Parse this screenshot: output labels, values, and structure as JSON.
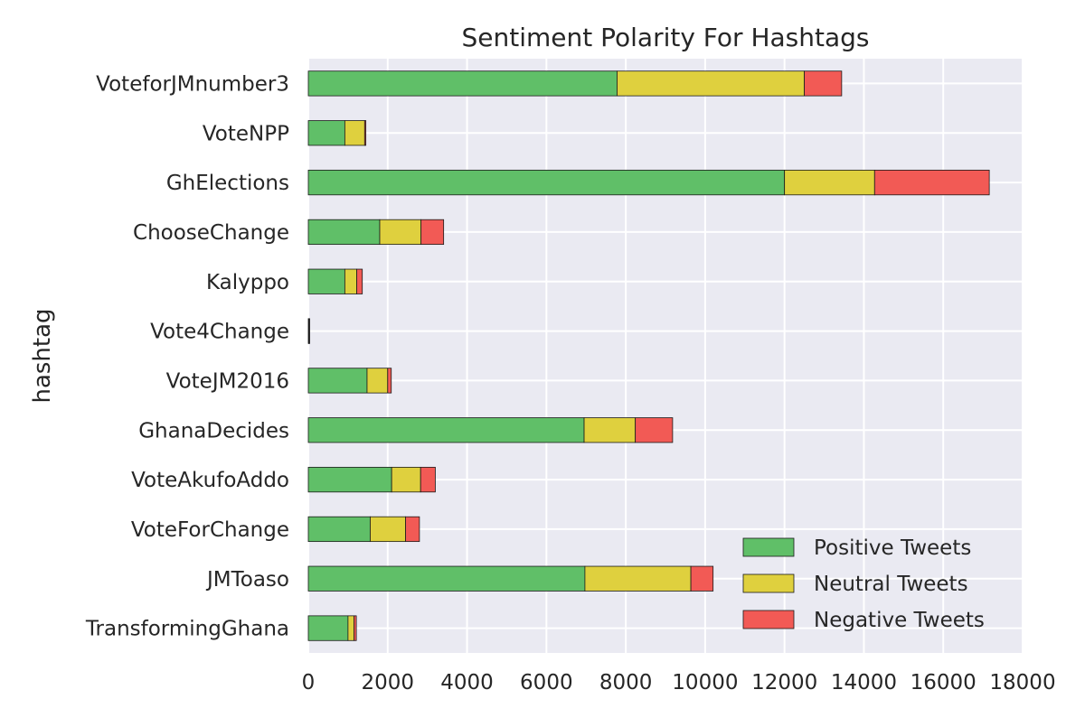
{
  "chart_data": {
    "type": "bar",
    "orientation": "horizontal",
    "stacked": true,
    "title": "Sentiment Polarity For Hashtags",
    "xlabel": "",
    "ylabel": "hashtag",
    "categories": [
      "VoteforJMnumber3",
      "VoteNPP",
      "GhElections",
      "ChooseChange",
      "Kalyppo",
      "Vote4Change",
      "VoteJM2016",
      "GhanaDecides",
      "VoteAkufoAddo",
      "VoteForChange",
      "JMToaso",
      "TransformingGhana"
    ],
    "series": [
      {
        "name": "Positive Tweets",
        "color": "#60bf68",
        "values": [
          7780,
          920,
          12000,
          1800,
          920,
          10,
          1480,
          6950,
          2100,
          1560,
          6970,
          1000
        ]
      },
      {
        "name": "Neutral Tweets",
        "color": "#dfd03e",
        "values": [
          4720,
          500,
          2270,
          1040,
          300,
          5,
          520,
          1290,
          730,
          890,
          2670,
          150
        ]
      },
      {
        "name": "Negative Tweets",
        "color": "#f25a55",
        "values": [
          940,
          30,
          2890,
          570,
          140,
          0,
          90,
          940,
          370,
          350,
          560,
          60
        ]
      }
    ],
    "xlim": [
      0,
      18000
    ],
    "xticks": [
      "0",
      "2000",
      "4000",
      "6000",
      "8000",
      "10000",
      "12000",
      "14000",
      "16000",
      "18000"
    ],
    "grid": true,
    "legend_position": "lower-right",
    "plot_background": "#eaeaf2",
    "grid_color": "#ffffff"
  }
}
